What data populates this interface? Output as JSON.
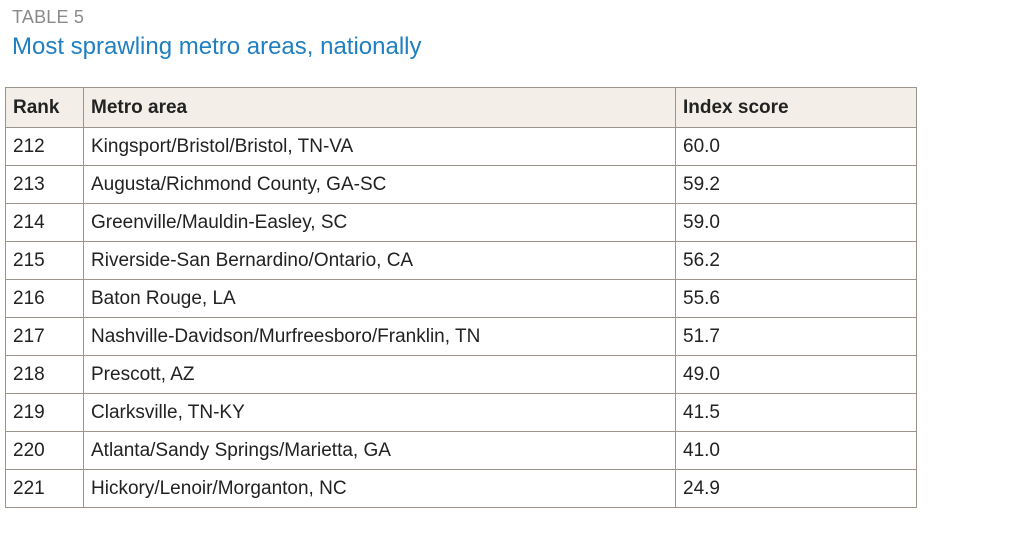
{
  "header": {
    "label": "TABLE 5",
    "title": "Most sprawling metro areas, nationally"
  },
  "table": {
    "columns": [
      "Rank",
      "Metro area",
      "Index score"
    ],
    "rows": [
      [
        "212",
        "Kingsport/Bristol/Bristol, TN-VA",
        "60.0"
      ],
      [
        "213",
        "Augusta/Richmond County, GA-SC",
        "59.2"
      ],
      [
        "214",
        "Greenville/Mauldin-Easley, SC",
        "59.0"
      ],
      [
        "215",
        "Riverside-San Bernardino/Ontario, CA",
        "56.2"
      ],
      [
        "216",
        "Baton Rouge, LA",
        "55.6"
      ],
      [
        "217",
        "Nashville-Davidson/Murfreesboro/Franklin, TN",
        "51.7"
      ],
      [
        "218",
        "Prescott, AZ",
        "49.0"
      ],
      [
        "219",
        "Clarksville, TN-KY",
        "41.5"
      ],
      [
        "220",
        "Atlanta/Sandy Springs/Marietta, GA",
        "41.0"
      ],
      [
        "221",
        "Hickory/Lenoir/Morganton, NC",
        "24.9"
      ]
    ]
  }
}
